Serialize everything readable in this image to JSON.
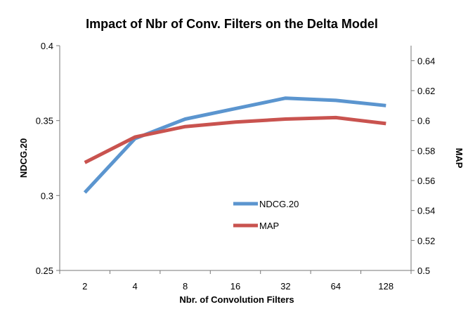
{
  "chart_data": {
    "type": "line",
    "title": "Impact of Nbr of Conv. Filters on the Delta Model",
    "xlabel": "Nbr. of Convolution Filters",
    "ylabel": "NDCG.20",
    "y2label": "MAP",
    "categories": [
      "2",
      "4",
      "8",
      "16",
      "32",
      "64",
      "128"
    ],
    "ylim": [
      0.25,
      0.4
    ],
    "y2lim": [
      0.5,
      0.65
    ],
    "yticks": [
      "0.25",
      "0.3",
      "0.35",
      "0.4"
    ],
    "y2ticks": [
      "0.5",
      "0.52",
      "0.54",
      "0.56",
      "0.58",
      "0.6",
      "0.62",
      "0.64"
    ],
    "legend_position": "center",
    "series": [
      {
        "name": "NDCG.20",
        "axis": "left",
        "color": "#5b95cf",
        "values": [
          0.302,
          0.338,
          0.351,
          0.358,
          0.365,
          0.3635,
          0.36
        ]
      },
      {
        "name": "MAP",
        "axis": "right",
        "color": "#c9534f",
        "values": [
          0.572,
          0.589,
          0.596,
          0.599,
          0.601,
          0.602,
          0.598
        ]
      }
    ]
  }
}
